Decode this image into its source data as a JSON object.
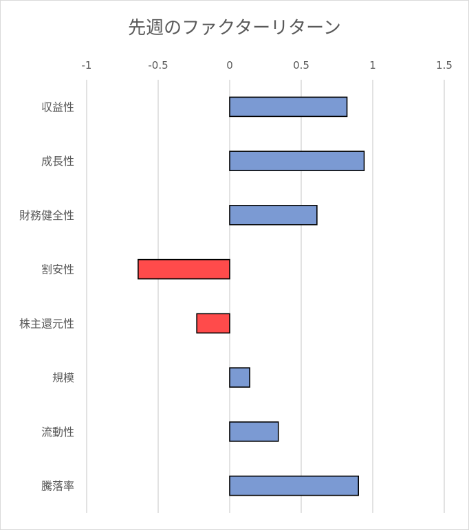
{
  "chart_data": {
    "type": "bar",
    "orientation": "horizontal",
    "title": "先週のファクターリターン",
    "categories": [
      "収益性",
      "成長性",
      "財務健全性",
      "割安性",
      "株主還元性",
      "規模",
      "流動性",
      "騰落率"
    ],
    "values": [
      0.82,
      0.94,
      0.61,
      -0.64,
      -0.23,
      0.14,
      0.34,
      0.9
    ],
    "xlim": [
      -1,
      1.5
    ],
    "xticks": [
      -1,
      -0.5,
      0,
      0.5,
      1,
      1.5
    ],
    "xtick_labels": [
      "-1",
      "-0.5",
      "0",
      "0.5",
      "1",
      "1.5"
    ],
    "x_axis_position": "top",
    "grid": true,
    "legend": "none",
    "colors": {
      "positive": "#7b9ad3",
      "negative": "#ff4b4b",
      "bar_border": "#000000",
      "grid": "#d9d9d9",
      "text": "#595959"
    }
  }
}
